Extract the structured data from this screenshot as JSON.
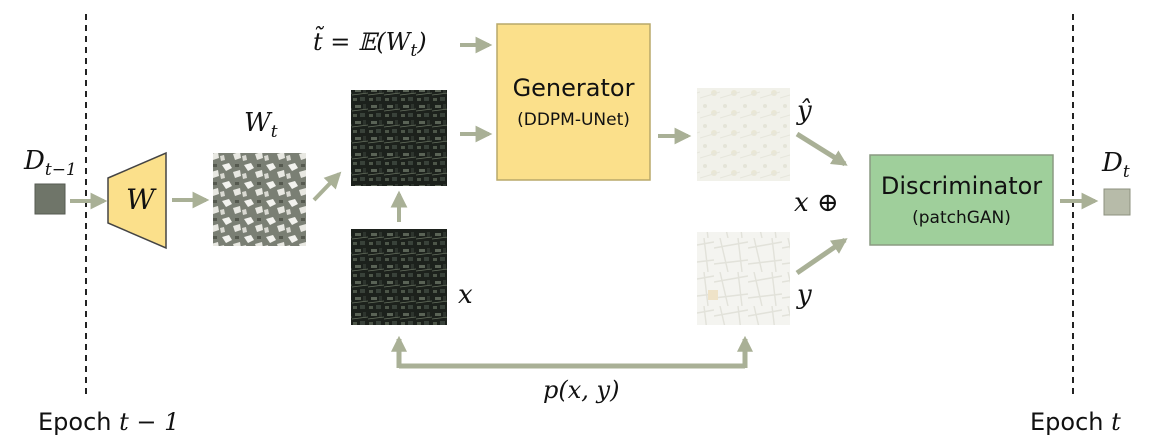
{
  "labels": {
    "d_prev": "D",
    "d_prev_sub": "t−1",
    "w": "W",
    "w_t": "W",
    "w_t_sub": "t",
    "t_tilde_eq": "t̃ = 𝔼(W",
    "t_tilde_sub": "t",
    "t_tilde_close": ")",
    "x": "x",
    "y_hat": "ŷ",
    "y": "y",
    "x_oplus": "x ⊕",
    "d_t": "D",
    "d_t_sub": "t",
    "p_xy": "p(x, y)"
  },
  "generator": {
    "title": "Generator",
    "subtitle": "(DDPM-UNet)"
  },
  "discriminator": {
    "title": "Discriminator",
    "subtitle": "(patchGAN)"
  },
  "epochs": {
    "left_word": "Epoch",
    "left_var": "t − 1",
    "right_word": "Epoch",
    "right_var": "t"
  },
  "colors": {
    "arrow": "#a9b096",
    "generator_fill": "#fbe08b",
    "generator_border": "#b8a86a",
    "discriminator_fill": "#9fcf9b",
    "discriminator_border": "#8a9a82",
    "encoder_fill": "#fbe08b",
    "dashed_line": "#222222"
  }
}
